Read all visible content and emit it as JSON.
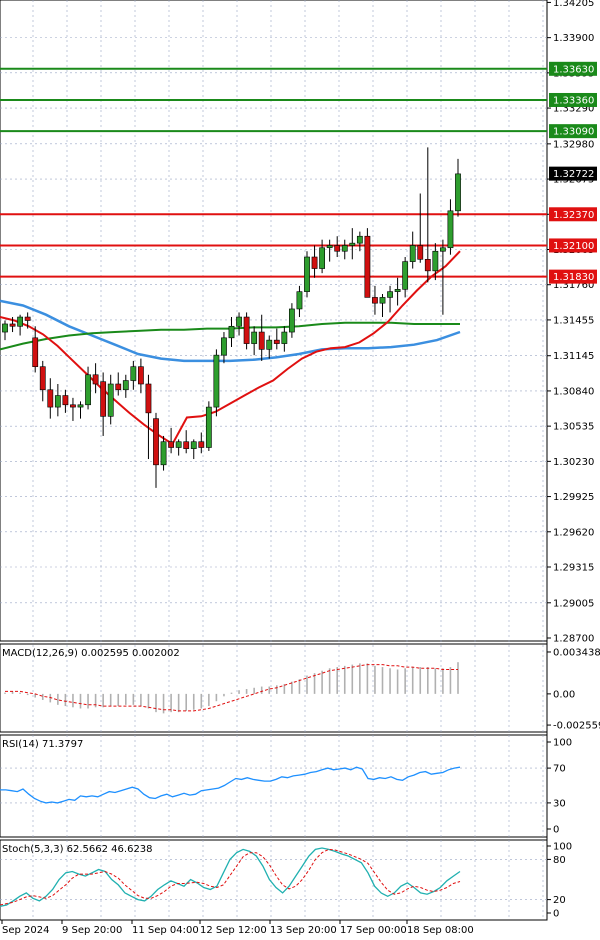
{
  "chart_data": [
    {
      "type": "candlestick",
      "panel": "price",
      "ylim": [
        1.287,
        1.342
      ],
      "y_ticks": [
        "1.34205",
        "1.33900",
        "1.33595",
        "1.33290",
        "1.32980",
        "1.32675",
        "1.32370",
        "1.32065",
        "1.31760",
        "1.31455",
        "1.31145",
        "1.30840",
        "1.30535",
        "1.30230",
        "1.29925",
        "1.29620",
        "1.29315",
        "1.29005",
        "1.28700"
      ],
      "current_price": {
        "label": "1.32722",
        "value": 1.32722
      },
      "levels": [
        {
          "label": "1.33630",
          "value": 1.3363,
          "color": "#1a8a1a"
        },
        {
          "label": "1.33360",
          "value": 1.3336,
          "color": "#1a8a1a"
        },
        {
          "label": "1.33090",
          "value": 1.3309,
          "color": "#1a8a1a"
        },
        {
          "label": "1.32370",
          "value": 1.3237,
          "color": "#e01010"
        },
        {
          "label": "1.32100",
          "value": 1.321,
          "color": "#e01010"
        },
        {
          "label": "1.31830",
          "value": 1.3183,
          "color": "#e01010"
        }
      ],
      "x_labels": [
        "Sep 2024",
        "9 Sep 20:00",
        "11 Sep 04:00",
        "12 Sep 12:00",
        "13 Sep 20:00",
        "17 Sep 00:00",
        "18 Sep 08:00"
      ],
      "x_label_index": [
        0,
        10,
        20,
        30,
        40,
        50,
        60
      ],
      "candles": [
        [
          1.3135,
          1.3145,
          1.3128,
          1.3142
        ],
        [
          1.3142,
          1.3148,
          1.3135,
          1.314
        ],
        [
          1.314,
          1.315,
          1.3132,
          1.3148
        ],
        [
          1.3148,
          1.3152,
          1.3138,
          1.3145
        ],
        [
          1.313,
          1.314,
          1.31,
          1.3105
        ],
        [
          1.3105,
          1.311,
          1.3075,
          1.3085
        ],
        [
          1.3085,
          1.3095,
          1.306,
          1.307
        ],
        [
          1.307,
          1.309,
          1.3062,
          1.308
        ],
        [
          1.308,
          1.3085,
          1.3065,
          1.3072
        ],
        [
          1.3072,
          1.3078,
          1.3058,
          1.307
        ],
        [
          1.307,
          1.3075,
          1.306,
          1.3072
        ],
        [
          1.3072,
          1.3105,
          1.3068,
          1.3098
        ],
        [
          1.3098,
          1.3108,
          1.3082,
          1.309
        ],
        [
          1.3092,
          1.31,
          1.3045,
          1.3062
        ],
        [
          1.3062,
          1.3098,
          1.3055,
          1.309
        ],
        [
          1.309,
          1.31,
          1.308,
          1.3085
        ],
        [
          1.3085,
          1.3098,
          1.3078,
          1.3093
        ],
        [
          1.3093,
          1.311,
          1.3085,
          1.3105
        ],
        [
          1.3105,
          1.3112,
          1.3082,
          1.309
        ],
        [
          1.309,
          1.3098,
          1.3025,
          1.3065
        ],
        [
          1.306,
          1.3065,
          1.3,
          1.302
        ],
        [
          1.302,
          1.3045,
          1.3015,
          1.304
        ],
        [
          1.304,
          1.3052,
          1.303,
          1.3035
        ],
        [
          1.3035,
          1.3042,
          1.3028,
          1.304
        ],
        [
          1.304,
          1.305,
          1.303,
          1.3034
        ],
        [
          1.3034,
          1.3042,
          1.3025,
          1.304
        ],
        [
          1.304,
          1.3048,
          1.303,
          1.3035
        ],
        [
          1.3035,
          1.3075,
          1.3032,
          1.307
        ],
        [
          1.307,
          1.312,
          1.3062,
          1.3115
        ],
        [
          1.3115,
          1.3135,
          1.3108,
          1.313
        ],
        [
          1.313,
          1.3148,
          1.3122,
          1.314
        ],
        [
          1.314,
          1.3152,
          1.3132,
          1.3148
        ],
        [
          1.3148,
          1.3152,
          1.312,
          1.3125
        ],
        [
          1.3125,
          1.314,
          1.3115,
          1.3135
        ],
        [
          1.3135,
          1.315,
          1.311,
          1.312
        ],
        [
          1.312,
          1.3132,
          1.3112,
          1.3128
        ],
        [
          1.3128,
          1.3138,
          1.312,
          1.3125
        ],
        [
          1.3125,
          1.314,
          1.3118,
          1.3135
        ],
        [
          1.3135,
          1.316,
          1.313,
          1.3155
        ],
        [
          1.3155,
          1.3175,
          1.3148,
          1.317
        ],
        [
          1.317,
          1.3205,
          1.3165,
          1.32
        ],
        [
          1.32,
          1.321,
          1.3182,
          1.319
        ],
        [
          1.319,
          1.3215,
          1.3186,
          1.3208
        ],
        [
          1.3208,
          1.3215,
          1.3196,
          1.321
        ],
        [
          1.321,
          1.3218,
          1.32,
          1.3205
        ],
        [
          1.3205,
          1.3215,
          1.3198,
          1.321
        ],
        [
          1.321,
          1.3225,
          1.3198,
          1.3212
        ],
        [
          1.3212,
          1.3222,
          1.3205,
          1.3218
        ],
        [
          1.3218,
          1.3225,
          1.317,
          1.3165
        ],
        [
          1.3165,
          1.3175,
          1.315,
          1.316
        ],
        [
          1.316,
          1.3168,
          1.3148,
          1.3165
        ],
        [
          1.3165,
          1.3175,
          1.3152,
          1.317
        ],
        [
          1.317,
          1.3182,
          1.3158,
          1.3172
        ],
        [
          1.3172,
          1.32,
          1.3165,
          1.3196
        ],
        [
          1.3196,
          1.3222,
          1.319,
          1.321
        ],
        [
          1.321,
          1.3255,
          1.3195,
          1.3198
        ],
        [
          1.3198,
          1.3295,
          1.3178,
          1.3188
        ],
        [
          1.3188,
          1.3212,
          1.318,
          1.3205
        ],
        [
          1.3205,
          1.3215,
          1.315,
          1.3208
        ],
        [
          1.3208,
          1.325,
          1.3202,
          1.324
        ],
        [
          1.324,
          1.3285,
          1.3235,
          1.3272
        ]
      ],
      "ma_red": [
        1.3148,
        1.3145,
        1.314,
        1.3133,
        1.3123,
        1.3111,
        1.3099,
        1.3087,
        1.3076,
        1.3065,
        1.3055,
        1.3046,
        1.3038,
        1.3061,
        1.3062,
        1.3066,
        1.3073,
        1.308,
        1.3087,
        1.3093,
        1.3103,
        1.3112,
        1.3118,
        1.3121,
        1.3122,
        1.3126,
        1.3134,
        1.3144,
        1.3158,
        1.3171,
        1.3183,
        1.3192,
        1.3205
      ],
      "ma_red_x": [
        0,
        2,
        4,
        6,
        8,
        10,
        12,
        14,
        16,
        18,
        20,
        22,
        24,
        26,
        28,
        30,
        32,
        34,
        36,
        38,
        40,
        42,
        44,
        46,
        48,
        50,
        52,
        54,
        56,
        58,
        60,
        62,
        64
      ],
      "ma_green": [
        1.312,
        1.3125,
        1.3129,
        1.3132,
        1.3134,
        1.3135,
        1.3136,
        1.3137,
        1.3137,
        1.3138,
        1.3138,
        1.3139,
        1.3139,
        1.314,
        1.3142,
        1.3143,
        1.3143,
        1.3143,
        1.3142,
        1.3142,
        1.3142
      ],
      "ma_blue": [
        1.3162,
        1.3158,
        1.315,
        1.314,
        1.3132,
        1.3124,
        1.3116,
        1.3112,
        1.311,
        1.311,
        1.311,
        1.3111,
        1.3113,
        1.3116,
        1.312,
        1.3121,
        1.3121,
        1.3122,
        1.3124,
        1.3128,
        1.3135
      ]
    },
    {
      "type": "histogram+line",
      "panel": "macd",
      "label": "MACD(12,26,9) 0.002595 0.002002",
      "y_ticks": [
        "0.003438",
        "0.00",
        "-0.002559"
      ],
      "ylim": [
        -0.0028,
        0.0036
      ],
      "histogram": [
        0.0001,
        0.0002,
        0.0001,
        -0.0001,
        -0.0003,
        -0.0005,
        -0.0007,
        -0.0009,
        -0.001,
        -0.0011,
        -0.0012,
        -0.0012,
        -0.0011,
        -0.0011,
        -0.001,
        -0.001,
        -0.0009,
        -0.0009,
        -0.001,
        -0.0012,
        -0.0015,
        -0.0016,
        -0.0015,
        -0.0015,
        -0.0014,
        -0.0013,
        -0.0012,
        -0.001,
        -0.0006,
        -0.0002,
        0.0001,
        0.0003,
        0.0004,
        0.0005,
        0.0006,
        0.0006,
        0.0007,
        0.0008,
        0.001,
        0.0012,
        0.0015,
        0.0017,
        0.0019,
        0.0021,
        0.0022,
        0.0023,
        0.0024,
        0.0025,
        0.0025,
        0.0023,
        0.0022,
        0.0021,
        0.002,
        0.0021,
        0.0022,
        0.0022,
        0.0022,
        0.0021,
        0.0021,
        0.0022,
        0.0026
      ],
      "signal": [
        0.0002,
        0.0002,
        0.0002,
        0.0001,
        0.0,
        -0.0002,
        -0.0003,
        -0.0005,
        -0.0006,
        -0.0007,
        -0.0008,
        -0.0009,
        -0.0009,
        -0.001,
        -0.001,
        -0.001,
        -0.001,
        -0.001,
        -0.001,
        -0.0011,
        -0.0012,
        -0.0013,
        -0.0013,
        -0.0014,
        -0.0014,
        -0.0014,
        -0.0013,
        -0.0012,
        -0.001,
        -0.0008,
        -0.0006,
        -0.0004,
        -0.0002,
        0.0,
        0.0002,
        0.0004,
        0.0005,
        0.0007,
        0.0009,
        0.0011,
        0.0013,
        0.0015,
        0.0017,
        0.0019,
        0.002,
        0.0021,
        0.0022,
        0.0023,
        0.0024,
        0.0024,
        0.0024,
        0.0023,
        0.0023,
        0.0022,
        0.0022,
        0.0021,
        0.0021,
        0.0021,
        0.002,
        0.002,
        0.002
      ],
      "colors": {
        "histogram": "#b0b0b0",
        "signal": "#e01010"
      }
    },
    {
      "type": "line",
      "panel": "rsi",
      "label": "RSI(14) 71.3797",
      "y_ticks": [
        "100",
        "70",
        "30",
        "0"
      ],
      "ylim": [
        0,
        100
      ],
      "values": [
        45,
        45,
        44,
        43,
        46,
        40,
        35,
        32,
        30,
        31,
        30,
        32,
        34,
        33,
        38,
        37,
        38,
        37,
        40,
        43,
        42,
        44,
        46,
        48,
        46,
        40,
        36,
        35,
        38,
        40,
        37,
        39,
        41,
        39,
        40,
        44,
        45,
        46,
        47,
        50,
        54,
        58,
        57,
        59,
        57,
        56,
        55,
        55,
        57,
        60,
        59,
        61,
        62,
        63,
        65,
        66,
        68,
        70,
        68,
        69,
        70,
        68,
        71,
        69,
        58,
        57,
        59,
        58,
        60,
        57,
        56,
        60,
        62,
        65,
        66,
        63,
        64,
        65,
        68,
        70,
        71
      ],
      "color": "#1e90ff"
    },
    {
      "type": "line",
      "panel": "stochastic",
      "label": "Stoch(5,3,3) 62.5662 46.6238",
      "y_ticks": [
        "100",
        "80",
        "20",
        "0"
      ],
      "ylim": [
        0,
        100
      ],
      "k": [
        10,
        12,
        18,
        25,
        30,
        22,
        18,
        25,
        35,
        50,
        60,
        62,
        58,
        55,
        60,
        65,
        62,
        50,
        42,
        30,
        25,
        20,
        18,
        25,
        35,
        42,
        48,
        44,
        40,
        50,
        45,
        38,
        35,
        40,
        60,
        80,
        90,
        95,
        92,
        85,
        70,
        50,
        38,
        30,
        40,
        55,
        70,
        85,
        95,
        97,
        95,
        92,
        88,
        85,
        80,
        75,
        60,
        40,
        30,
        25,
        30,
        40,
        45,
        38,
        30,
        28,
        32,
        38,
        48,
        55,
        62
      ],
      "d": [
        12,
        14,
        16,
        20,
        24,
        26,
        24,
        22,
        26,
        34,
        42,
        52,
        58,
        58,
        58,
        60,
        62,
        58,
        52,
        42,
        34,
        26,
        22,
        22,
        26,
        32,
        40,
        44,
        44,
        45,
        46,
        44,
        40,
        38,
        42,
        56,
        70,
        84,
        90,
        90,
        84,
        72,
        56,
        42,
        36,
        40,
        50,
        64,
        80,
        90,
        95,
        94,
        91,
        88,
        84,
        80,
        74,
        60,
        46,
        34,
        28,
        30,
        36,
        40,
        38,
        34,
        32,
        34,
        38,
        44,
        47
      ],
      "colors": {
        "k": "#20b0b0",
        "d": "#e01010"
      }
    }
  ]
}
